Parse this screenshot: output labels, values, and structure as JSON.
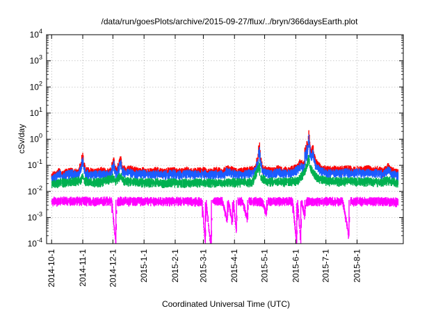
{
  "chart_data": {
    "type": "line",
    "title": "/data/run/goesPlots/archive/2015-09-27/flux/../bryn/366daysEarth.plot",
    "xlabel": "Coordinated Universal Time (UTC)",
    "ylabel": "cSv/day",
    "y_scale": "log",
    "ylim": [
      0.0001,
      10000
    ],
    "y_ticks": [
      {
        "value": 0.0001,
        "base": "10",
        "exp": "-4"
      },
      {
        "value": 0.001,
        "base": "10",
        "exp": "-3"
      },
      {
        "value": 0.01,
        "base": "10",
        "exp": "-2"
      },
      {
        "value": 0.1,
        "base": "10",
        "exp": "-1"
      },
      {
        "value": 1,
        "base": "10",
        "exp": "0"
      },
      {
        "value": 10,
        "base": "10",
        "exp": "1"
      },
      {
        "value": 100,
        "base": "10",
        "exp": "2"
      },
      {
        "value": 1000,
        "base": "10",
        "exp": "3"
      },
      {
        "value": 10000,
        "base": "10",
        "exp": "4"
      }
    ],
    "x_domain_days": [
      -5,
      350
    ],
    "x_ticks": [
      {
        "label": "2014-10-1",
        "day": 0
      },
      {
        "label": "2014-11-1",
        "day": 31
      },
      {
        "label": "2014-12-1",
        "day": 61
      },
      {
        "label": "2015-1-1",
        "day": 92
      },
      {
        "label": "2015-2-1",
        "day": 123
      },
      {
        "label": "2015-3-1",
        "day": 151
      },
      {
        "label": "2015-4-1",
        "day": 182
      },
      {
        "label": "2015-5-1",
        "day": 212
      },
      {
        "label": "2015-6-1",
        "day": 243
      },
      {
        "label": "2015-7-1",
        "day": 273
      },
      {
        "label": "2015-8-1",
        "day": 304
      }
    ],
    "grid": true,
    "series": [
      {
        "name": "red",
        "color": "#ff0000",
        "points": [
          [
            0,
            0.035
          ],
          [
            1,
            0.045
          ],
          [
            4,
            0.05
          ],
          [
            8,
            0.07
          ],
          [
            10,
            0.05
          ],
          [
            13,
            0.055
          ],
          [
            16,
            0.06
          ],
          [
            20,
            0.07
          ],
          [
            23,
            0.06
          ],
          [
            26,
            0.055
          ],
          [
            28,
            0.08
          ],
          [
            30,
            0.15
          ],
          [
            31,
            0.3
          ],
          [
            32,
            0.12
          ],
          [
            34,
            0.07
          ],
          [
            38,
            0.065
          ],
          [
            42,
            0.06
          ],
          [
            46,
            0.065
          ],
          [
            50,
            0.07
          ],
          [
            54,
            0.06
          ],
          [
            58,
            0.065
          ],
          [
            60,
            0.07
          ],
          [
            62,
            0.2
          ],
          [
            63,
            0.08
          ],
          [
            66,
            0.07
          ],
          [
            68,
            0.18
          ],
          [
            69,
            0.22
          ],
          [
            70,
            0.09
          ],
          [
            74,
            0.07
          ],
          [
            78,
            0.08
          ],
          [
            82,
            0.07
          ],
          [
            86,
            0.065
          ],
          [
            90,
            0.07
          ],
          [
            95,
            0.06
          ],
          [
            100,
            0.065
          ],
          [
            105,
            0.07
          ],
          [
            110,
            0.06
          ],
          [
            115,
            0.065
          ],
          [
            120,
            0.07
          ],
          [
            125,
            0.06
          ],
          [
            130,
            0.065
          ],
          [
            135,
            0.07
          ],
          [
            140,
            0.06
          ],
          [
            145,
            0.065
          ],
          [
            150,
            0.07
          ],
          [
            155,
            0.06
          ],
          [
            160,
            0.065
          ],
          [
            165,
            0.07
          ],
          [
            170,
            0.06
          ],
          [
            175,
            0.08
          ],
          [
            180,
            0.07
          ],
          [
            185,
            0.06
          ],
          [
            190,
            0.065
          ],
          [
            195,
            0.07
          ],
          [
            200,
            0.075
          ],
          [
            204,
            0.1
          ],
          [
            206,
            0.3
          ],
          [
            207,
            0.75
          ],
          [
            208,
            0.2
          ],
          [
            210,
            0.08
          ],
          [
            215,
            0.07
          ],
          [
            220,
            0.065
          ],
          [
            225,
            0.08
          ],
          [
            230,
            0.07
          ],
          [
            235,
            0.07
          ],
          [
            240,
            0.075
          ],
          [
            245,
            0.1
          ],
          [
            248,
            0.15
          ],
          [
            250,
            0.12
          ],
          [
            252,
            0.14
          ],
          [
            253,
            0.6
          ],
          [
            254,
            0.2
          ],
          [
            256,
            2.2
          ],
          [
            257,
            0.8
          ],
          [
            258,
            0.25
          ],
          [
            260,
            0.6
          ],
          [
            261,
            0.3
          ],
          [
            263,
            0.15
          ],
          [
            265,
            0.12
          ],
          [
            268,
            0.09
          ],
          [
            272,
            0.08
          ],
          [
            276,
            0.07
          ],
          [
            280,
            0.08
          ],
          [
            285,
            0.07
          ],
          [
            290,
            0.075
          ],
          [
            295,
            0.08
          ],
          [
            300,
            0.07
          ],
          [
            305,
            0.075
          ],
          [
            310,
            0.07
          ],
          [
            315,
            0.08
          ],
          [
            320,
            0.07
          ],
          [
            325,
            0.075
          ],
          [
            330,
            0.06
          ],
          [
            335,
            0.1
          ],
          [
            338,
            0.07
          ],
          [
            342,
            0.06
          ],
          [
            345,
            0.055
          ]
        ]
      },
      {
        "name": "blue",
        "color": "#1a5cff",
        "points": [
          [
            0,
            0.03
          ],
          [
            1,
            0.035
          ],
          [
            4,
            0.04
          ],
          [
            8,
            0.055
          ],
          [
            10,
            0.04
          ],
          [
            13,
            0.045
          ],
          [
            16,
            0.05
          ],
          [
            20,
            0.055
          ],
          [
            23,
            0.05
          ],
          [
            26,
            0.045
          ],
          [
            28,
            0.06
          ],
          [
            30,
            0.1
          ],
          [
            31,
            0.2
          ],
          [
            32,
            0.09
          ],
          [
            34,
            0.055
          ],
          [
            38,
            0.05
          ],
          [
            42,
            0.05
          ],
          [
            46,
            0.05
          ],
          [
            50,
            0.055
          ],
          [
            54,
            0.05
          ],
          [
            58,
            0.05
          ],
          [
            60,
            0.055
          ],
          [
            62,
            0.15
          ],
          [
            63,
            0.06
          ],
          [
            66,
            0.055
          ],
          [
            68,
            0.13
          ],
          [
            69,
            0.16
          ],
          [
            70,
            0.07
          ],
          [
            74,
            0.055
          ],
          [
            78,
            0.06
          ],
          [
            82,
            0.055
          ],
          [
            86,
            0.05
          ],
          [
            90,
            0.055
          ],
          [
            95,
            0.05
          ],
          [
            100,
            0.05
          ],
          [
            105,
            0.055
          ],
          [
            110,
            0.05
          ],
          [
            115,
            0.05
          ],
          [
            120,
            0.055
          ],
          [
            125,
            0.05
          ],
          [
            130,
            0.05
          ],
          [
            135,
            0.055
          ],
          [
            140,
            0.05
          ],
          [
            145,
            0.05
          ],
          [
            150,
            0.055
          ],
          [
            155,
            0.05
          ],
          [
            160,
            0.05
          ],
          [
            165,
            0.055
          ],
          [
            170,
            0.05
          ],
          [
            175,
            0.065
          ],
          [
            180,
            0.055
          ],
          [
            185,
            0.05
          ],
          [
            190,
            0.05
          ],
          [
            195,
            0.055
          ],
          [
            200,
            0.06
          ],
          [
            204,
            0.08
          ],
          [
            206,
            0.2
          ],
          [
            207,
            0.5
          ],
          [
            208,
            0.15
          ],
          [
            210,
            0.065
          ],
          [
            215,
            0.055
          ],
          [
            220,
            0.05
          ],
          [
            225,
            0.065
          ],
          [
            230,
            0.055
          ],
          [
            235,
            0.055
          ],
          [
            240,
            0.06
          ],
          [
            245,
            0.08
          ],
          [
            248,
            0.1
          ],
          [
            250,
            0.09
          ],
          [
            252,
            0.1
          ],
          [
            253,
            0.4
          ],
          [
            254,
            0.15
          ],
          [
            256,
            1.5
          ],
          [
            257,
            0.6
          ],
          [
            258,
            0.18
          ],
          [
            260,
            0.4
          ],
          [
            261,
            0.2
          ],
          [
            263,
            0.1
          ],
          [
            265,
            0.09
          ],
          [
            268,
            0.07
          ],
          [
            272,
            0.06
          ],
          [
            276,
            0.055
          ],
          [
            280,
            0.06
          ],
          [
            285,
            0.055
          ],
          [
            290,
            0.06
          ],
          [
            295,
            0.06
          ],
          [
            300,
            0.055
          ],
          [
            305,
            0.06
          ],
          [
            310,
            0.055
          ],
          [
            315,
            0.06
          ],
          [
            320,
            0.055
          ],
          [
            325,
            0.06
          ],
          [
            330,
            0.05
          ],
          [
            335,
            0.08
          ],
          [
            338,
            0.055
          ],
          [
            342,
            0.05
          ],
          [
            345,
            0.045
          ]
        ]
      },
      {
        "name": "green",
        "color": "#00b050",
        "points": [
          [
            0,
            0.022
          ],
          [
            10,
            0.025
          ],
          [
            20,
            0.027
          ],
          [
            30,
            0.03
          ],
          [
            31,
            0.05
          ],
          [
            32,
            0.03
          ],
          [
            40,
            0.025
          ],
          [
            50,
            0.026
          ],
          [
            62,
            0.04
          ],
          [
            63,
            0.027
          ],
          [
            69,
            0.045
          ],
          [
            70,
            0.03
          ],
          [
            80,
            0.026
          ],
          [
            90,
            0.025
          ],
          [
            100,
            0.025
          ],
          [
            110,
            0.024
          ],
          [
            120,
            0.025
          ],
          [
            130,
            0.024
          ],
          [
            140,
            0.025
          ],
          [
            150,
            0.024
          ],
          [
            160,
            0.025
          ],
          [
            170,
            0.025
          ],
          [
            180,
            0.026
          ],
          [
            190,
            0.025
          ],
          [
            200,
            0.026
          ],
          [
            207,
            0.12
          ],
          [
            208,
            0.04
          ],
          [
            215,
            0.027
          ],
          [
            225,
            0.027
          ],
          [
            235,
            0.026
          ],
          [
            245,
            0.03
          ],
          [
            253,
            0.07
          ],
          [
            256,
            0.25
          ],
          [
            257,
            0.1
          ],
          [
            260,
            0.06
          ],
          [
            265,
            0.035
          ],
          [
            275,
            0.028
          ],
          [
            285,
            0.027
          ],
          [
            295,
            0.028
          ],
          [
            305,
            0.027
          ],
          [
            315,
            0.027
          ],
          [
            325,
            0.026
          ],
          [
            335,
            0.03
          ],
          [
            345,
            0.024
          ]
        ]
      },
      {
        "name": "magenta",
        "color": "#ff00ff",
        "points": [
          [
            0,
            0.004
          ],
          [
            2,
            0.005
          ],
          [
            5,
            0.0045
          ],
          [
            10,
            0.005
          ],
          [
            20,
            0.0048
          ],
          [
            30,
            0.005
          ],
          [
            40,
            0.0047
          ],
          [
            50,
            0.0048
          ],
          [
            55,
            0.005
          ],
          [
            60,
            0.0048
          ],
          [
            64,
            0.0001
          ],
          [
            65,
            0.0048
          ],
          [
            70,
            0.005
          ],
          [
            80,
            0.0047
          ],
          [
            90,
            0.0049
          ],
          [
            100,
            0.0048
          ],
          [
            110,
            0.0047
          ],
          [
            120,
            0.0048
          ],
          [
            130,
            0.0049
          ],
          [
            140,
            0.0048
          ],
          [
            150,
            0.0047
          ],
          [
            153,
            0.0001
          ],
          [
            154,
            0.0047
          ],
          [
            158,
            0.0001
          ],
          [
            159,
            0.0001
          ],
          [
            160,
            0.0047
          ],
          [
            170,
            0.0048
          ],
          [
            175,
            0.0008
          ],
          [
            176,
            0.0047
          ],
          [
            180,
            0.0007
          ],
          [
            181,
            0.0047
          ],
          [
            184,
            0.0003
          ],
          [
            185,
            0.0047
          ],
          [
            190,
            0.0048
          ],
          [
            195,
            0.0009
          ],
          [
            196,
            0.0047
          ],
          [
            200,
            0.0048
          ],
          [
            210,
            0.0047
          ],
          [
            214,
            0.0013
          ],
          [
            215,
            0.0047
          ],
          [
            220,
            0.0048
          ],
          [
            230,
            0.0047
          ],
          [
            240,
            0.0048
          ],
          [
            244,
            0.0001
          ],
          [
            245,
            0.0047
          ],
          [
            248,
            0.0001
          ],
          [
            249,
            0.0047
          ],
          [
            252,
            0.0011
          ],
          [
            253,
            0.0047
          ],
          [
            260,
            0.0048
          ],
          [
            270,
            0.0047
          ],
          [
            280,
            0.0048
          ],
          [
            290,
            0.0047
          ],
          [
            296,
            0.0002
          ],
          [
            297,
            0.0047
          ],
          [
            305,
            0.0048
          ],
          [
            315,
            0.0047
          ],
          [
            325,
            0.0048
          ],
          [
            335,
            0.0047
          ],
          [
            345,
            0.0045
          ]
        ]
      }
    ]
  }
}
